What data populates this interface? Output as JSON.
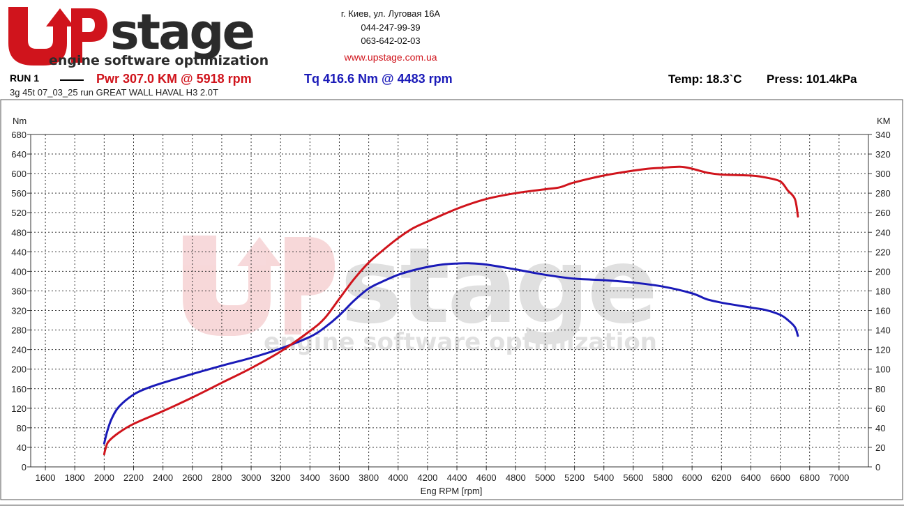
{
  "brand": {
    "logo_text": "Upstage",
    "tagline": "engine software optimization",
    "colors": {
      "red": "#d0141c",
      "dark": "#2b2b2b"
    }
  },
  "contact": {
    "address": "г. Киев, ул. Луговая 16А",
    "phone1": "044-247-99-39",
    "phone2": "063-642-02-03",
    "website": "www.upstage.com.ua"
  },
  "run": {
    "label": "RUN 1",
    "power_text": "Pwr  307.0 KM @ 5918 rpm",
    "torque_text": "Tq 416.6 Nm @ 4483 rpm",
    "temp_text": "Temp: 18.3`C",
    "press_text": "Press: 101.4kPa",
    "description": "3g 45t 07_03_25 run GREAT WALL HAVAL H3 2.0T"
  },
  "chart_data": {
    "type": "line",
    "xlabel": "Eng RPM [rpm]",
    "ylabel_left": "Nm",
    "ylabel_right": "KM",
    "xlim": [
      1500,
      7200
    ],
    "ylim_left": [
      0,
      680
    ],
    "ylim_right": [
      0,
      340
    ],
    "x_ticks": [
      1600,
      1800,
      2000,
      2200,
      2400,
      2600,
      2800,
      3000,
      3200,
      3400,
      3600,
      3800,
      4000,
      4200,
      4400,
      4600,
      4800,
      5000,
      5200,
      5400,
      5600,
      5800,
      6000,
      6200,
      6400,
      6600,
      6800,
      7000
    ],
    "y_ticks_left": [
      0,
      40,
      80,
      120,
      160,
      200,
      240,
      280,
      320,
      360,
      400,
      440,
      480,
      520,
      560,
      600,
      640,
      680
    ],
    "y_ticks_right": [
      0,
      20,
      40,
      60,
      80,
      100,
      120,
      140,
      160,
      180,
      200,
      220,
      240,
      260,
      280,
      300,
      320,
      340
    ],
    "grid": true,
    "series": [
      {
        "name": "Tq",
        "axis": "left",
        "color": "#1a1ab8",
        "x": [
          2000,
          2020,
          2050,
          2100,
          2200,
          2300,
          2400,
          2600,
          2800,
          3000,
          3200,
          3400,
          3500,
          3600,
          3700,
          3800,
          3900,
          4000,
          4100,
          4200,
          4300,
          4400,
          4483,
          4600,
          4800,
          5000,
          5200,
          5400,
          5600,
          5800,
          6000,
          6100,
          6200,
          6400,
          6500,
          6600,
          6650,
          6700,
          6720
        ],
        "y": [
          48,
          72,
          98,
          123,
          148,
          162,
          172,
          190,
          207,
          223,
          242,
          266,
          285,
          310,
          340,
          365,
          380,
          393,
          402,
          409,
          414,
          416,
          416.6,
          414,
          404,
          393,
          385,
          382,
          377,
          369,
          355,
          343,
          336,
          326,
          321,
          311,
          301,
          286,
          268
        ]
      },
      {
        "name": "Pwr",
        "axis": "right",
        "color": "#d0141c",
        "x": [
          2000,
          2010,
          2030,
          2100,
          2200,
          2400,
          2600,
          2800,
          3000,
          3200,
          3400,
          3500,
          3600,
          3700,
          3800,
          3900,
          4000,
          4100,
          4200,
          4400,
          4600,
          4800,
          5000,
          5100,
          5200,
          5400,
          5600,
          5700,
          5800,
          5918,
          6000,
          6100,
          6200,
          6400,
          6500,
          6600,
          6650,
          6700,
          6720
        ],
        "y": [
          13,
          19,
          26,
          35,
          44,
          57,
          71,
          86,
          101,
          118,
          139,
          152,
          172,
          192,
          209,
          222,
          234,
          244,
          251,
          264,
          274,
          280,
          284,
          286,
          291,
          298,
          303,
          305,
          306,
          307.0,
          305,
          301,
          299,
          298,
          296,
          292,
          283,
          274,
          256
        ]
      }
    ]
  }
}
